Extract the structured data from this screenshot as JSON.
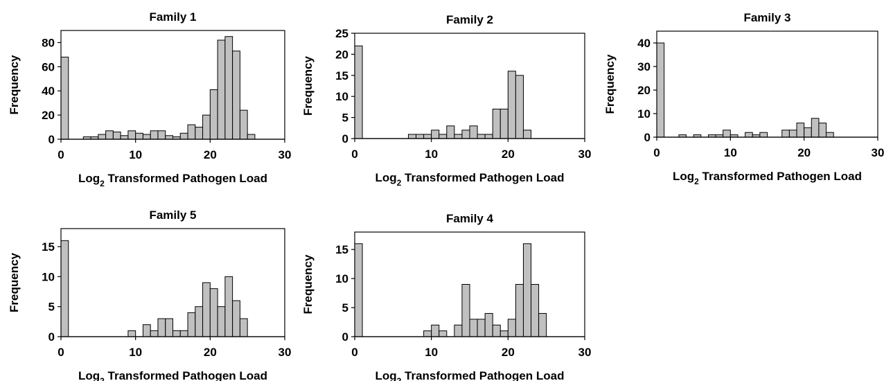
{
  "chart_data": [
    {
      "type": "bar",
      "title": "Family 1",
      "xlabel": "Log",
      "xlabel_sub": "2",
      "xlabel_rest": " Transformed Pathogen Load",
      "ylabel": "Frequency",
      "xlim": [
        0,
        30
      ],
      "ylim": [
        0,
        90
      ],
      "xticks": [
        0,
        10,
        20,
        30
      ],
      "yticks": [
        0,
        20,
        40,
        60,
        80
      ],
      "bin_width": 1,
      "bin_starts": [
        0,
        1,
        2,
        3,
        4,
        5,
        6,
        7,
        8,
        9,
        10,
        11,
        12,
        13,
        14,
        15,
        16,
        17,
        18,
        19,
        20,
        21,
        22,
        23,
        24,
        25,
        26,
        27,
        28,
        29
      ],
      "values": [
        68,
        0,
        0,
        2,
        2,
        4,
        7,
        6,
        3,
        7,
        5,
        4,
        7,
        7,
        3,
        2,
        5,
        12,
        10,
        20,
        41,
        82,
        85,
        73,
        24,
        4,
        0,
        0,
        0,
        0
      ],
      "bar_color": "#c0c0c0"
    },
    {
      "type": "bar",
      "title": "Family 2",
      "xlabel": "Log",
      "xlabel_sub": "2",
      "xlabel_rest": " Transformed Pathogen Load",
      "ylabel": "Frequency",
      "xlim": [
        0,
        30
      ],
      "ylim": [
        0,
        25
      ],
      "xticks": [
        0,
        10,
        20,
        30
      ],
      "yticks": [
        0,
        5,
        10,
        15,
        20,
        25
      ],
      "bin_width": 1,
      "bin_starts": [
        0,
        1,
        2,
        3,
        4,
        5,
        6,
        7,
        8,
        9,
        10,
        11,
        12,
        13,
        14,
        15,
        16,
        17,
        18,
        19,
        20,
        21,
        22,
        23,
        24,
        25,
        26,
        27,
        28,
        29
      ],
      "values": [
        22,
        0,
        0,
        0,
        0,
        0,
        0,
        1,
        1,
        1,
        2,
        1,
        3,
        1,
        2,
        3,
        1,
        1,
        7,
        7,
        16,
        15,
        2,
        0,
        0,
        0,
        0,
        0,
        0,
        0
      ],
      "bar_color": "#c0c0c0"
    },
    {
      "type": "bar",
      "title": "Family 3",
      "xlabel": "Log",
      "xlabel_sub": "2",
      "xlabel_rest": " Transformed Pathogen Load",
      "ylabel": "Frequency",
      "xlim": [
        0,
        30
      ],
      "ylim": [
        0,
        45
      ],
      "xticks": [
        0,
        10,
        20,
        30
      ],
      "yticks": [
        0,
        10,
        20,
        30,
        40
      ],
      "bin_width": 1,
      "bin_starts": [
        0,
        1,
        2,
        3,
        4,
        5,
        6,
        7,
        8,
        9,
        10,
        11,
        12,
        13,
        14,
        15,
        16,
        17,
        18,
        19,
        20,
        21,
        22,
        23,
        24,
        25,
        26,
        27,
        28,
        29
      ],
      "values": [
        40,
        0,
        0,
        1,
        0,
        1,
        0,
        1,
        1,
        3,
        1,
        0,
        2,
        1,
        2,
        0,
        0,
        3,
        3,
        6,
        4,
        8,
        6,
        2,
        0,
        0,
        0,
        0,
        0,
        0
      ],
      "bar_color": "#c0c0c0"
    },
    {
      "type": "bar",
      "title": "Family 5",
      "xlabel": "Log",
      "xlabel_sub": "2",
      "xlabel_rest": " Transformed Pathogen Load",
      "ylabel": "Frequency",
      "xlim": [
        0,
        30
      ],
      "ylim": [
        0,
        18
      ],
      "xticks": [
        0,
        10,
        20,
        30
      ],
      "yticks": [
        0,
        5,
        10,
        15
      ],
      "bin_width": 1,
      "bin_starts": [
        0,
        1,
        2,
        3,
        4,
        5,
        6,
        7,
        8,
        9,
        10,
        11,
        12,
        13,
        14,
        15,
        16,
        17,
        18,
        19,
        20,
        21,
        22,
        23,
        24,
        25,
        26,
        27,
        28,
        29
      ],
      "values": [
        16,
        0,
        0,
        0,
        0,
        0,
        0,
        0,
        0,
        1,
        0,
        2,
        1,
        3,
        3,
        1,
        1,
        4,
        5,
        9,
        8,
        5,
        10,
        6,
        3,
        0,
        0,
        0,
        0,
        0
      ],
      "bar_color": "#c0c0c0"
    },
    {
      "type": "bar",
      "title": "Family 4",
      "xlabel": "Log",
      "xlabel_sub": "2",
      "xlabel_rest": " Transformed Pathogen Load",
      "ylabel": "Frequency",
      "xlim": [
        0,
        30
      ],
      "ylim": [
        0,
        18
      ],
      "xticks": [
        0,
        10,
        20,
        30
      ],
      "yticks": [
        0,
        5,
        10,
        15
      ],
      "bin_width": 1,
      "bin_starts": [
        0,
        1,
        2,
        3,
        4,
        5,
        6,
        7,
        8,
        9,
        10,
        11,
        12,
        13,
        14,
        15,
        16,
        17,
        18,
        19,
        20,
        21,
        22,
        23,
        24,
        25,
        26,
        27,
        28,
        29
      ],
      "values": [
        16,
        0,
        0,
        0,
        0,
        0,
        0,
        0,
        0,
        1,
        2,
        1,
        0,
        2,
        9,
        3,
        3,
        4,
        2,
        1,
        3,
        9,
        16,
        9,
        4,
        0,
        0,
        0,
        0,
        0
      ],
      "bar_color": "#c0c0c0"
    }
  ]
}
